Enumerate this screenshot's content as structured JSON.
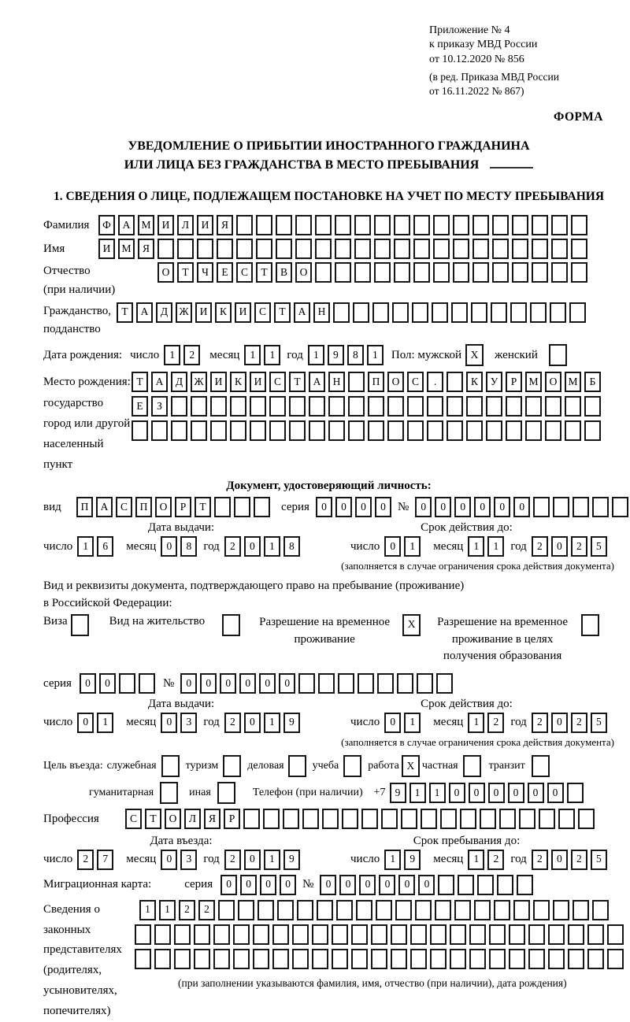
{
  "doc_ref": {
    "line1": "Приложение № 4",
    "line2": "к приказу МВД России",
    "line3": "от 10.12.2020 № 856",
    "line4": "(в ред. Приказа МВД России",
    "line5": "от 16.11.2022 № 867)",
    "form_label": "ФОРМА"
  },
  "title": {
    "line1": "УВЕДОМЛЕНИЕ О ПРИБЫТИИ ИНОСТРАННОГО ГРАЖДАНИНА",
    "line2": "ИЛИ ЛИЦА БЕЗ ГРАЖДАНСТВА В МЕСТО ПРЕБЫВАНИЯ"
  },
  "section1_heading": "1. СВЕДЕНИЯ О ЛИЦЕ, ПОДЛЕЖАЩЕМ ПОСТАНОВКЕ НА УЧЕТ ПО МЕСТУ ПРЕБЫВАНИЯ",
  "labels": {
    "surname": "Фамилия",
    "name": "Имя",
    "patronymic": "Отчество",
    "patronymic_note": "(при наличии)",
    "citizenship1": "Гражданство,",
    "citizenship2": "подданство",
    "birth_date": "Дата рождения:",
    "day": "число",
    "month": "месяц",
    "year": "год",
    "sex_male": "Пол: мужской",
    "sex_female": "женский",
    "birth_place1": "Место рождения:",
    "birth_place2": "государство",
    "birth_place3": "город или другой",
    "birth_place4": "населенный пункт",
    "identity_doc_heading": "Документ, удостоверяющий личность:",
    "doc_kind": "вид",
    "series": "серия",
    "number": "№",
    "issue_date": "Дата выдачи:",
    "valid_until": "Срок действия до:",
    "restriction_note": "(заполняется в случае ограничения срока действия документа)",
    "residence_doc1": "Вид и реквизиты документа, подтверждающего право на пребывание (проживание)",
    "residence_doc2": "в Российской Федерации:",
    "visa": "Виза",
    "residence_permit": "Вид на жительство",
    "temp_permit1": "Разрешение на временное",
    "temp_permit2": "проживание",
    "temp_permit_edu1": "Разрешение на временное",
    "temp_permit_edu2": "проживание в целях",
    "temp_permit_edu3": "получения образования",
    "purpose": "Цель въезда:",
    "p_official": "служебная",
    "p_tourism": "туризм",
    "p_business": "деловая",
    "p_study": "учеба",
    "p_work": "работа",
    "p_private": "частная",
    "p_transit": "транзит",
    "p_humanitarian": "гуманитарная",
    "p_other": "иная",
    "phone": "Телефон (при наличии)",
    "phone_prefix": "+7",
    "profession": "Профессия",
    "entry_date": "Дата въезда:",
    "stay_until": "Срок пребывания до:",
    "migration_card": "Миграционная карта:",
    "rep1": "Сведения о",
    "rep2": "законных",
    "rep3": "представителях",
    "rep4": "(родителях,",
    "rep5": "усыновителях,",
    "rep6": "попечителях)",
    "rep_note": "(при заполнении указываются фамилия, имя, отчество (при наличии), дата рождения)"
  },
  "fields": {
    "surname": {
      "value": "ФАМИЛИЯ",
      "cells": 25
    },
    "name": {
      "value": "ИМЯ",
      "cells": 25
    },
    "patronymic": {
      "value": "ОТЧЕСТВО",
      "cells": 22
    },
    "citizenship": {
      "value": "ТАДЖИКИСТАН",
      "cells": 24
    },
    "birth_day": "12",
    "birth_month": "11",
    "birth_year": "1981",
    "sex_male": {
      "value": "X",
      "cells": 1
    },
    "sex_female": {
      "value": "",
      "cells": 1
    },
    "birth_place_row1": {
      "value": "ТАДЖИКИСТАН ПОС. КУРМОМБ",
      "cells": 24
    },
    "birth_place_row2": {
      "value": "ЕЗ",
      "cells": 24
    },
    "birth_place_row3": {
      "value": "",
      "cells": 24
    },
    "id_doc_kind": {
      "value": "ПАСПОРТ",
      "cells": 10
    },
    "id_doc_series": {
      "value": "0000",
      "cells": 4
    },
    "id_doc_number": {
      "value": "000000",
      "cells": 12
    },
    "id_issue_day": "16",
    "id_issue_month": "08",
    "id_issue_year": "2018",
    "id_valid_day": "01",
    "id_valid_month": "11",
    "id_valid_year": "2025",
    "visa_cb": {
      "value": "",
      "cells": 1
    },
    "residence_permit_cb": {
      "value": "",
      "cells": 1
    },
    "temp_permit_cb": {
      "value": "X",
      "cells": 1
    },
    "temp_permit_edu_cb": {
      "value": "",
      "cells": 1
    },
    "res_series": {
      "value": "00",
      "cells": 4
    },
    "res_number": {
      "value": "000000",
      "cells": 14
    },
    "res_issue_day": "01",
    "res_issue_month": "03",
    "res_issue_year": "2019",
    "res_valid_day": "01",
    "res_valid_month": "12",
    "res_valid_year": "2025",
    "purpose_official": {
      "value": "",
      "cells": 1
    },
    "purpose_tourism": {
      "value": "",
      "cells": 1
    },
    "purpose_business": {
      "value": "",
      "cells": 1
    },
    "purpose_study": {
      "value": "",
      "cells": 1
    },
    "purpose_work": {
      "value": "X",
      "cells": 1
    },
    "purpose_private": {
      "value": "",
      "cells": 1
    },
    "purpose_transit": {
      "value": "",
      "cells": 1
    },
    "purpose_humanitarian": {
      "value": "",
      "cells": 1
    },
    "purpose_other": {
      "value": "",
      "cells": 1
    },
    "phone": {
      "value": "911000000",
      "cells": 10
    },
    "profession": {
      "value": "СТОЛЯР",
      "cells": 24
    },
    "entry_day": "27",
    "entry_month": "03",
    "entry_year": "2019",
    "stay_day": "19",
    "stay_month": "12",
    "stay_year": "2025",
    "mig_series": {
      "value": "0000",
      "cells": 4
    },
    "mig_number": {
      "value": "000000",
      "cells": 11
    },
    "rep_row1": {
      "value": "1122",
      "cells": 24
    },
    "rep_row2": {
      "value": "",
      "cells": 25
    },
    "rep_row3": {
      "value": "",
      "cells": 25
    }
  }
}
